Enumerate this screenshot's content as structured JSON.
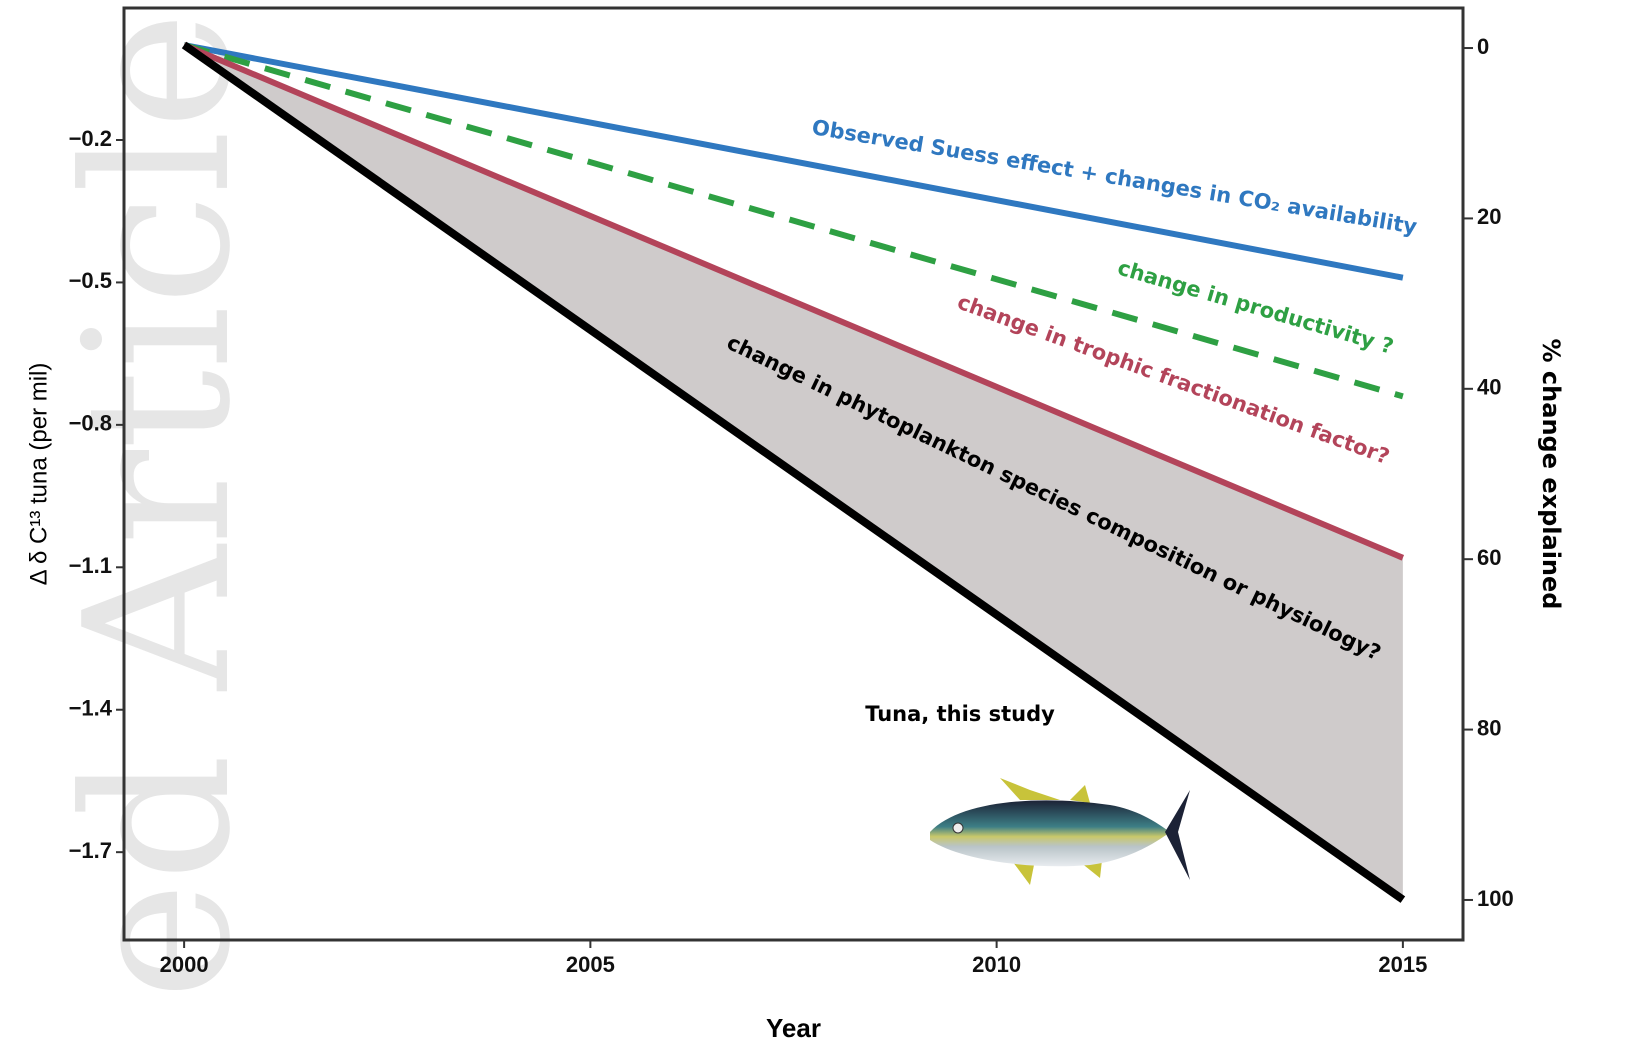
{
  "chart_data": {
    "type": "line",
    "watermark": "ed Article",
    "xlabel": "Year",
    "ylabel": "Δ δ C¹³ tuna (per mil)",
    "y2label": "% change explained",
    "x": [
      2000,
      2015
    ],
    "xlim": [
      1999.26,
      2015.74
    ],
    "xticks": [
      2000,
      2005,
      2010,
      2015
    ],
    "ylim": [
      -1.885,
      0.078
    ],
    "yticks": [
      {
        "value": -0.2,
        "label": "−0.2"
      },
      {
        "value": -0.5,
        "label": "−0.5"
      },
      {
        "value": -0.8,
        "label": "−0.8"
      },
      {
        "value": -1.1,
        "label": "−1.1"
      },
      {
        "value": -1.4,
        "label": "−1.4"
      },
      {
        "value": -1.7,
        "label": "−1.7"
      }
    ],
    "y2lim": [
      104.7,
      -4.7
    ],
    "y2ticks": [
      0,
      20,
      40,
      60,
      80,
      100
    ],
    "shade_color": "#cfcbcb",
    "series": [
      {
        "name": "Observed Suess effect + changes in CO₂ availability",
        "color": "#2f78c0",
        "dashed": false,
        "values": [
          0,
          -0.49
        ]
      },
      {
        "name": "change in productivity ?",
        "color": "#2ea043",
        "dashed": true,
        "values": [
          0,
          -0.74
        ]
      },
      {
        "name": "change in trophic fractionation factor?",
        "color": "#b3445a",
        "dashed": false,
        "values": [
          0,
          -1.08
        ]
      },
      {
        "name": "change in phytoplankton species composition or physiology?",
        "color": "#000000",
        "dashed": false,
        "values": [
          0,
          -1.8
        ]
      }
    ],
    "annotation": "Tuna, this study"
  }
}
